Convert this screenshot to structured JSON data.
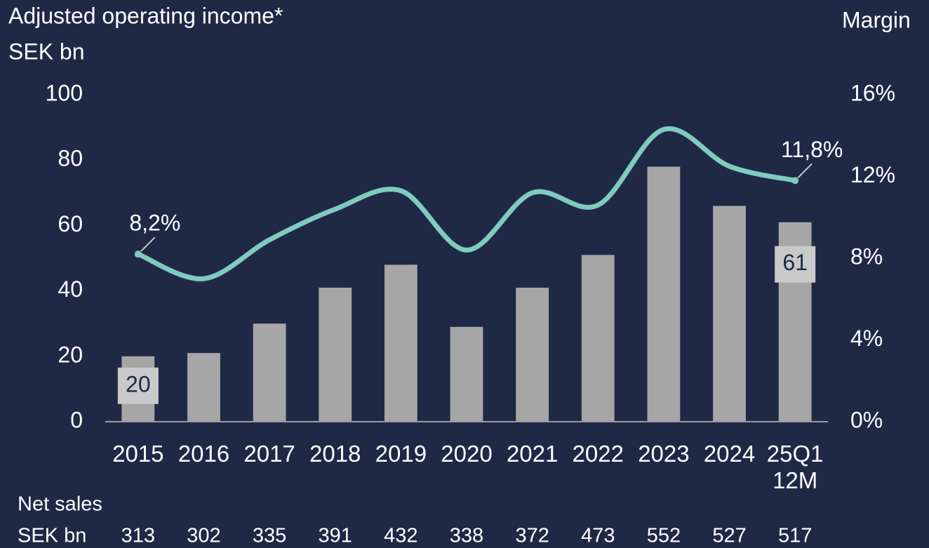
{
  "chart_data": {
    "type": "bar_line",
    "y_title": "Adjusted operating income*",
    "y_unit": "SEK bn",
    "y2_title": "Margin",
    "categories": [
      "2015",
      "2016",
      "2017",
      "2018",
      "2019",
      "2020",
      "2021",
      "2022",
      "2023",
      "2024",
      "25Q1 12M"
    ],
    "series": [
      {
        "name": "Adjusted operating income",
        "type": "bar",
        "color": "#a6a6a6",
        "values": [
          20,
          21,
          30,
          41,
          48,
          29,
          41,
          51,
          78,
          66,
          61
        ],
        "value_labels": [
          "20",
          null,
          null,
          null,
          null,
          null,
          null,
          null,
          null,
          null,
          "61"
        ]
      },
      {
        "name": "Margin",
        "type": "line",
        "axis": "y2",
        "color": "#7fcbbf",
        "values": [
          8.2,
          7.0,
          8.9,
          10.4,
          11.3,
          8.4,
          11.2,
          10.6,
          14.3,
          12.5,
          11.8
        ],
        "value_labels": [
          "8,2%",
          null,
          null,
          null,
          null,
          null,
          null,
          null,
          null,
          null,
          "11,8%"
        ]
      }
    ],
    "ylim": [
      0,
      100
    ],
    "yticks": [
      0,
      20,
      40,
      60,
      80,
      100
    ],
    "y2lim": [
      0,
      16
    ],
    "y2ticks": [
      {
        "value": 0,
        "label": "0%"
      },
      {
        "value": 4,
        "label": "4%"
      },
      {
        "value": 8,
        "label": "8%"
      },
      {
        "value": 12,
        "label": "12%"
      },
      {
        "value": 16,
        "label": "16%"
      }
    ],
    "net_sales_title": "Net sales",
    "net_sales_unit": "SEK bn",
    "net_sales": [
      313,
      302,
      335,
      391,
      432,
      338,
      372,
      473,
      552,
      527,
      517
    ]
  }
}
